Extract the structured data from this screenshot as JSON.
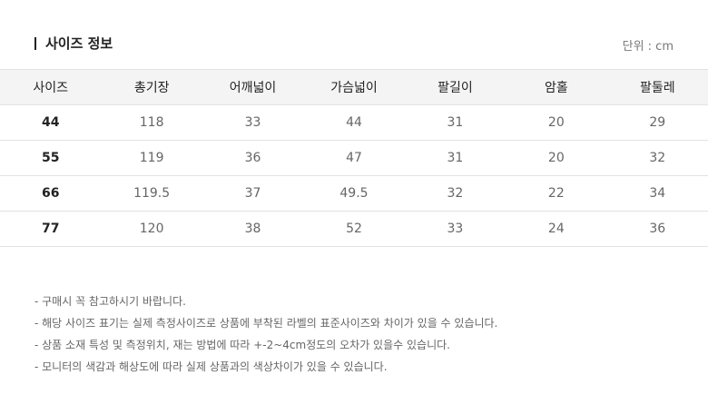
{
  "title": "사이즈 정보",
  "unit": "단위 : cm",
  "table": {
    "headers": [
      "사이즈",
      "총기장",
      "어깨넓이",
      "가슴넓이",
      "팔길이",
      "암홀",
      "팔둘레"
    ],
    "rows": [
      [
        "44",
        "118",
        "33",
        "44",
        "31",
        "20",
        "29"
      ],
      [
        "55",
        "119",
        "36",
        "47",
        "31",
        "20",
        "32"
      ],
      [
        "66",
        "119.5",
        "37",
        "49.5",
        "32",
        "22",
        "34"
      ],
      [
        "77",
        "120",
        "38",
        "52",
        "33",
        "24",
        "36"
      ]
    ]
  },
  "notes": [
    "- 구매시 꼭 참고하시기 바랍니다.",
    "- 해당 사이즈 표기는 실제 측정사이즈로 상품에 부착된 라벨의 표준사이즈와 차이가 있을 수 있습니다.",
    "- 상품 소재 특성 및 측정위치, 재는 방법에 따라 +-2~4cm정도의 오차가 있을수 있습니다.",
    "- 모니터의 색감과 해상도에 따라 실제 상품과의 색상차이가 있을 수 있습니다."
  ]
}
